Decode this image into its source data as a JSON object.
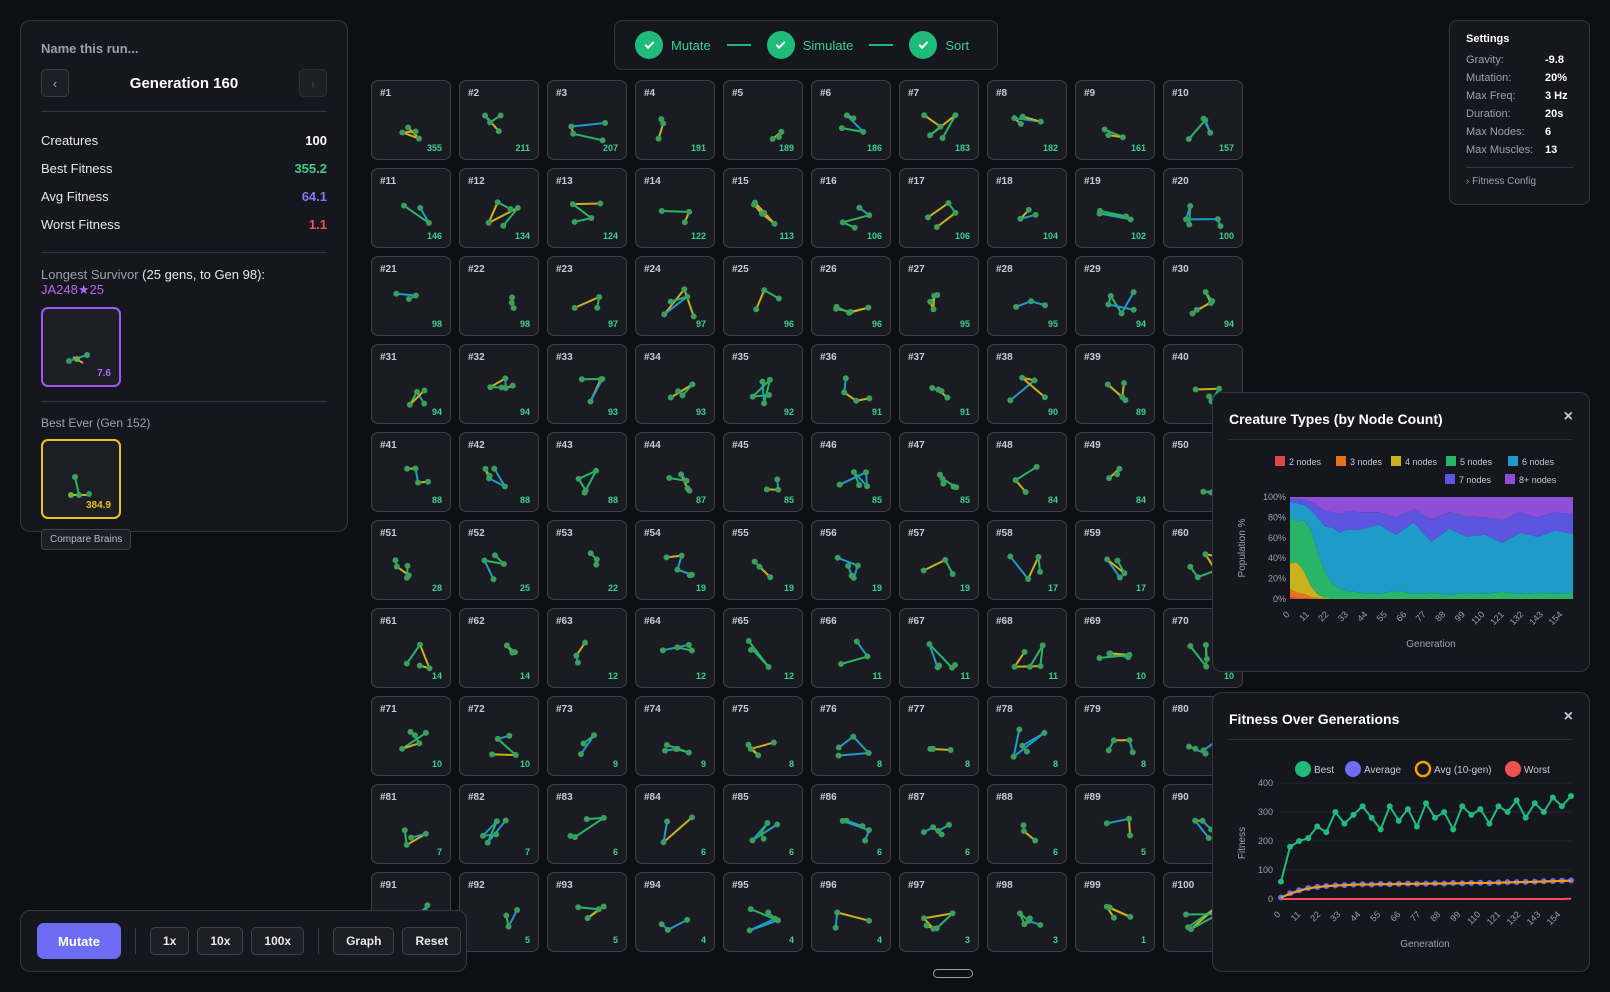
{
  "left_panel": {
    "run_name_placeholder": "Name this run...",
    "generation_title": "Generation 160",
    "prev_icon": "chevron-left-icon",
    "next_icon": "chevron-right-icon",
    "stats": [
      {
        "label": "Creatures",
        "value": "100",
        "color": "#ffffff"
      },
      {
        "label": "Best Fitness",
        "value": "355.2",
        "color": "#3ccf8e"
      },
      {
        "label": "Avg Fitness",
        "value": "64.1",
        "color": "#7b7bf7"
      },
      {
        "label": "Worst Fitness",
        "value": "1.1",
        "color": "#f05252"
      }
    ],
    "survivor_prefix": "Longest Survivor ",
    "survivor_detail": "(25 gens, to Gen 98):",
    "survivor_id": " JA248★25",
    "survivor_fitness": "7.6",
    "best_ever_label": "Best Ever (Gen 152)",
    "best_ever_fitness": "384.9",
    "compare_label": "Compare Brains"
  },
  "stepper": [
    {
      "label": "Mutate"
    },
    {
      "label": "Simulate"
    },
    {
      "label": "Sort"
    }
  ],
  "settings": {
    "title": "Settings",
    "rows": [
      {
        "label": "Gravity:",
        "value": "-9.8"
      },
      {
        "label": "Mutation:",
        "value": "20%"
      },
      {
        "label": "Max Freq:",
        "value": "3 Hz"
      },
      {
        "label": "Duration:",
        "value": "20s"
      },
      {
        "label": "Max Nodes:",
        "value": "6"
      },
      {
        "label": "Max Muscles:",
        "value": "13"
      }
    ],
    "fitness_config": "›  Fitness Config"
  },
  "grid": {
    "ranks": [
      "#1",
      "#2",
      "#3",
      "#4",
      "#5",
      "#6",
      "#7",
      "#8",
      "#9",
      "#10",
      "#11",
      "#12",
      "#13",
      "#14",
      "#15",
      "#16",
      "#17",
      "#18",
      "#19",
      "#20",
      "#21",
      "#22",
      "#23",
      "#24",
      "#25",
      "#26",
      "#27",
      "#28",
      "#29",
      "#30",
      "#31",
      "#32",
      "#33",
      "#34",
      "#35",
      "#36",
      "#37",
      "#38",
      "#39",
      "#40",
      "#41",
      "#42",
      "#43",
      "#44",
      "#45",
      "#46",
      "#47",
      "#48",
      "#49",
      "#50",
      "#51",
      "#52",
      "#53",
      "#54",
      "#55",
      "#56",
      "#57",
      "#58",
      "#59",
      "#60",
      "#61",
      "#62",
      "#63",
      "#64",
      "#65",
      "#66",
      "#67",
      "#68",
      "#69",
      "#70",
      "#71",
      "#72",
      "#73",
      "#74",
      "#75",
      "#76",
      "#77",
      "#78",
      "#79",
      "#80",
      "#81",
      "#82",
      "#83",
      "#84",
      "#85",
      "#86",
      "#87",
      "#88",
      "#89",
      "#90",
      "#91",
      "#92",
      "#93",
      "#94",
      "#95",
      "#96",
      "#97",
      "#98",
      "#99",
      "#100"
    ],
    "fitness": [
      "355",
      "211",
      "207",
      "191",
      "189",
      "186",
      "183",
      "182",
      "161",
      "157",
      "146",
      "134",
      "124",
      "122",
      "113",
      "106",
      "106",
      "104",
      "102",
      "100",
      "98",
      "98",
      "97",
      "97",
      "96",
      "96",
      "95",
      "95",
      "94",
      "94",
      "94",
      "94",
      "93",
      "93",
      "92",
      "91",
      "91",
      "90",
      "89",
      "",
      "88",
      "88",
      "88",
      "87",
      "85",
      "85",
      "85",
      "84",
      "84",
      "",
      "28",
      "25",
      "22",
      "19",
      "19",
      "19",
      "19",
      "17",
      "17",
      "",
      "14",
      "14",
      "12",
      "12",
      "12",
      "11",
      "11",
      "11",
      "10",
      "10",
      "10",
      "10",
      "9",
      "9",
      "8",
      "8",
      "8",
      "8",
      "8",
      "",
      "7",
      "7",
      "6",
      "6",
      "6",
      "6",
      "6",
      "6",
      "5",
      "",
      "",
      "5",
      "5",
      "4",
      "4",
      "4",
      "3",
      "3",
      "1",
      ""
    ]
  },
  "controls": {
    "mutate": "Mutate",
    "speed_1x": "1x",
    "speed_10x": "10x",
    "speed_100x": "100x",
    "graph": "Graph",
    "reset": "Reset"
  },
  "creature_types_panel": {
    "title": "Creature Types (by Node Count)",
    "close": "×",
    "chart_data": {
      "type": "area",
      "stacked": true,
      "normalized": true,
      "legend": [
        {
          "name": "2 nodes",
          "color": "#e04545"
        },
        {
          "name": "3 nodes",
          "color": "#e8711c"
        },
        {
          "name": "4 nodes",
          "color": "#c9b21b"
        },
        {
          "name": "5 nodes",
          "color": "#28b567"
        },
        {
          "name": "6 nodes",
          "color": "#1f9bc9"
        },
        {
          "name": "7 nodes",
          "color": "#5b55e0"
        },
        {
          "name": "8+ nodes",
          "color": "#8e4fd6"
        }
      ],
      "x_ticks": [
        "0",
        "11",
        "22",
        "33",
        "44",
        "55",
        "66",
        "77",
        "88",
        "99",
        "110",
        "121",
        "132",
        "143",
        "154"
      ],
      "y_ticks": [
        "100%",
        "80%",
        "60%",
        "40%",
        "20%",
        "0%"
      ],
      "xlabel": "Generation",
      "ylabel": "Population %",
      "x": [
        0,
        4,
        8,
        12,
        16,
        20,
        24,
        28,
        32,
        40,
        50,
        60,
        70,
        80,
        90,
        100,
        110,
        120,
        130,
        140,
        150,
        160
      ],
      "series": [
        {
          "name": "2 nodes",
          "values": [
            2,
            1,
            1,
            0,
            0,
            0,
            0,
            0,
            0,
            0,
            0,
            0,
            0,
            0,
            0,
            0,
            0,
            0,
            0,
            0,
            0,
            0
          ]
        },
        {
          "name": "3 nodes",
          "values": [
            8,
            5,
            4,
            2,
            1,
            0,
            0,
            0,
            0,
            0,
            0,
            0,
            0,
            0,
            0,
            0,
            0,
            0,
            0,
            0,
            0,
            0
          ]
        },
        {
          "name": "4 nodes",
          "values": [
            25,
            30,
            22,
            10,
            3,
            1,
            0,
            0,
            0,
            0,
            0,
            0,
            0,
            0,
            0,
            0,
            0,
            0,
            0,
            0,
            0,
            0
          ]
        },
        {
          "name": "5 nodes",
          "values": [
            45,
            40,
            50,
            55,
            40,
            25,
            15,
            10,
            8,
            6,
            5,
            8,
            5,
            6,
            4,
            6,
            5,
            7,
            5,
            6,
            5,
            6
          ]
        },
        {
          "name": "6 nodes",
          "values": [
            15,
            18,
            15,
            20,
            35,
            45,
            55,
            55,
            60,
            62,
            68,
            55,
            70,
            50,
            65,
            55,
            58,
            48,
            60,
            55,
            62,
            58
          ]
        },
        {
          "name": "7 nodes",
          "values": [
            3,
            4,
            6,
            8,
            12,
            15,
            15,
            18,
            18,
            17,
            12,
            17,
            13,
            22,
            16,
            20,
            17,
            22,
            20,
            19,
            18,
            19
          ]
        },
        {
          "name": "8+ nodes",
          "values": [
            2,
            2,
            2,
            5,
            9,
            14,
            15,
            17,
            14,
            15,
            15,
            20,
            12,
            22,
            15,
            19,
            20,
            23,
            15,
            20,
            15,
            17
          ]
        }
      ],
      "ylim": [
        0,
        100
      ],
      "legend_position": "top"
    }
  },
  "fitness_panel": {
    "title": "Fitness Over Generations",
    "close": "×",
    "chart_data": {
      "type": "line",
      "legend": [
        {
          "name": "Best",
          "color": "#1fbb7a"
        },
        {
          "name": "Average",
          "color": "#6c6cf5"
        },
        {
          "name": "Avg (10-gen)",
          "color": "#f59e0b"
        },
        {
          "name": "Worst",
          "color": "#f05252"
        }
      ],
      "x_ticks": [
        "0",
        "11",
        "22",
        "33",
        "44",
        "55",
        "66",
        "77",
        "88",
        "99",
        "110",
        "121",
        "132",
        "143",
        "154"
      ],
      "y_ticks": [
        "400",
        "300",
        "200",
        "100",
        "0"
      ],
      "xlabel": "Generation",
      "ylabel": "Fitness",
      "ylim": [
        0,
        400
      ],
      "x": [
        0,
        5,
        10,
        15,
        20,
        25,
        30,
        35,
        40,
        45,
        50,
        55,
        60,
        65,
        70,
        75,
        80,
        85,
        90,
        95,
        100,
        105,
        110,
        115,
        120,
        125,
        130,
        135,
        140,
        145,
        150,
        155,
        160
      ],
      "series": [
        {
          "name": "Best",
          "values": [
            60,
            180,
            200,
            210,
            250,
            230,
            300,
            260,
            290,
            320,
            280,
            240,
            320,
            270,
            310,
            250,
            330,
            280,
            300,
            240,
            320,
            290,
            310,
            260,
            320,
            300,
            340,
            280,
            330,
            300,
            350,
            320,
            355
          ]
        },
        {
          "name": "Average",
          "values": [
            5,
            20,
            30,
            38,
            42,
            45,
            47,
            48,
            50,
            51,
            50,
            52,
            51,
            52,
            53,
            52,
            53,
            54,
            53,
            55,
            54,
            55,
            56,
            55,
            57,
            58,
            58,
            59,
            60,
            61,
            62,
            63,
            64
          ]
        },
        {
          "name": "Avg (10-gen)",
          "values": [
            5,
            18,
            28,
            36,
            41,
            44,
            46,
            48,
            49,
            50,
            50,
            51,
            51,
            52,
            52,
            52,
            53,
            53,
            53,
            54,
            54,
            55,
            55,
            55,
            56,
            57,
            58,
            58,
            59,
            60,
            61,
            62,
            63
          ]
        },
        {
          "name": "Worst",
          "values": [
            0,
            0,
            0,
            0,
            0,
            0,
            0,
            0,
            0,
            0,
            0,
            0,
            0,
            0,
            0,
            0,
            0,
            0,
            0,
            0,
            0,
            0,
            0,
            0,
            0,
            0,
            0,
            0,
            0,
            0,
            0,
            0,
            1
          ]
        }
      ],
      "legend_position": "top"
    }
  }
}
